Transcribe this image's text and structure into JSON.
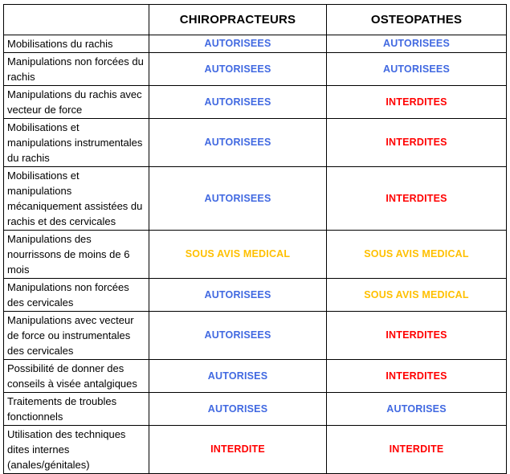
{
  "table": {
    "header": {
      "col_label": "",
      "col_chiro": "CHIROPRACTEURS",
      "col_osteo": "OSTEOPATHES"
    },
    "rows": [
      {
        "label": "Mobilisations du rachis",
        "chiro": {
          "text": "AUTORISEES",
          "status": "allowed"
        },
        "osteo": {
          "text": "AUTORISEES",
          "status": "allowed"
        }
      },
      {
        "label": "Manipulations non forcées du rachis",
        "chiro": {
          "text": "AUTORISEES",
          "status": "allowed"
        },
        "osteo": {
          "text": "AUTORISEES",
          "status": "allowed"
        }
      },
      {
        "label": "Manipulations du rachis avec vecteur de force",
        "chiro": {
          "text": "AUTORISEES",
          "status": "allowed"
        },
        "osteo": {
          "text": "INTERDITES",
          "status": "forbidden"
        }
      },
      {
        "label": "Mobilisations et manipulations instrumentales du rachis",
        "chiro": {
          "text": "AUTORISEES",
          "status": "allowed"
        },
        "osteo": {
          "text": "INTERDITES",
          "status": "forbidden"
        }
      },
      {
        "label": "Mobilisations et manipulations mécaniquement assistées du rachis et des cervicales",
        "chiro": {
          "text": "AUTORISEES",
          "status": "allowed"
        },
        "osteo": {
          "text": "INTERDITES",
          "status": "forbidden"
        }
      },
      {
        "label": "Manipulations des nourrissons de moins de 6 mois",
        "chiro": {
          "text": "SOUS AVIS MEDICAL",
          "status": "medical"
        },
        "osteo": {
          "text": "SOUS AVIS MEDICAL",
          "status": "medical"
        }
      },
      {
        "label": "Manipulations non forcées des cervicales",
        "chiro": {
          "text": "AUTORISEES",
          "status": "allowed"
        },
        "osteo": {
          "text": "SOUS AVIS MEDICAL",
          "status": "medical"
        }
      },
      {
        "label": "Manipulations avec vecteur de force ou instrumentales des cervicales",
        "chiro": {
          "text": "AUTORISEES",
          "status": "allowed"
        },
        "osteo": {
          "text": "INTERDITES",
          "status": "forbidden"
        }
      },
      {
        "label": "Possibilité de donner des conseils à visée antalgiques",
        "chiro": {
          "text": "AUTORISES",
          "status": "allowed"
        },
        "osteo": {
          "text": "INTERDITES",
          "status": "forbidden"
        }
      },
      {
        "label": "Traitements de troubles fonctionnels",
        "chiro": {
          "text": "AUTORISES",
          "status": "allowed"
        },
        "osteo": {
          "text": "AUTORISES",
          "status": "allowed"
        }
      },
      {
        "label": "Utilisation des techniques dites internes (anales/génitales)",
        "chiro": {
          "text": "INTERDITE",
          "status": "forbidden"
        },
        "osteo": {
          "text": "INTERDITE",
          "status": "forbidden"
        }
      }
    ],
    "colors": {
      "allowed": "#4169E1",
      "medical": "#FFC000",
      "forbidden": "#FF0000",
      "border": "#000000"
    }
  }
}
